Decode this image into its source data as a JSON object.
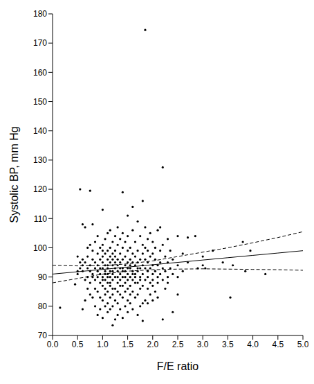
{
  "chart_data": {
    "type": "scatter",
    "x_label": "F/E ratio",
    "y_label": "Systolic BP, mm Hg",
    "grid": false,
    "xlim": [
      0,
      5
    ],
    "xticks": [
      {
        "value": 0,
        "label": "0.0"
      },
      {
        "value": 0.5,
        "label": "0.5"
      },
      {
        "value": 1,
        "label": "1.0"
      },
      {
        "value": 1.5,
        "label": "1.5"
      },
      {
        "value": 2,
        "label": "2.0"
      },
      {
        "value": 2.5,
        "label": "2.5"
      },
      {
        "value": 3,
        "label": "3.0"
      },
      {
        "value": 3.5,
        "label": "3.5"
      },
      {
        "value": 4,
        "label": "4.0"
      },
      {
        "value": 4.5,
        "label": "4.5"
      },
      {
        "value": 5,
        "label": "5.0"
      }
    ],
    "ylim": [
      70,
      180
    ],
    "yticks": [
      70,
      80,
      90,
      100,
      110,
      120,
      130,
      140,
      150,
      160,
      170,
      180
    ],
    "series": [
      {
        "type": "scatter",
        "marker": "circle",
        "color": "#000000",
        "x": [
          0.15,
          0.45,
          0.5,
          0.5,
          0.5,
          0.55,
          0.55,
          0.55,
          0.6,
          0.6,
          0.6,
          0.6,
          0.6,
          0.65,
          0.65,
          0.65,
          0.65,
          0.7,
          0.7,
          0.7,
          0.7,
          0.7,
          0.75,
          0.75,
          0.75,
          0.75,
          0.75,
          0.75,
          0.8,
          0.8,
          0.8,
          0.8,
          0.8,
          0.8,
          0.85,
          0.85,
          0.85,
          0.85,
          0.85,
          0.85,
          0.9,
          0.9,
          0.9,
          0.9,
          0.9,
          0.9,
          0.9,
          0.95,
          0.95,
          0.95,
          0.95,
          0.95,
          0.95,
          0.95,
          1.0,
          1.0,
          1.0,
          1.0,
          1.0,
          1.0,
          1.0,
          1.0,
          1.0,
          1.0,
          1.0,
          1.05,
          1.05,
          1.05,
          1.05,
          1.05,
          1.05,
          1.05,
          1.05,
          1.05,
          1.1,
          1.1,
          1.1,
          1.1,
          1.1,
          1.1,
          1.1,
          1.1,
          1.1,
          1.1,
          1.1,
          1.15,
          1.15,
          1.15,
          1.15,
          1.15,
          1.15,
          1.15,
          1.15,
          1.15,
          1.15,
          1.2,
          1.2,
          1.2,
          1.2,
          1.2,
          1.2,
          1.2,
          1.2,
          1.2,
          1.2,
          1.2,
          1.25,
          1.25,
          1.25,
          1.25,
          1.25,
          1.25,
          1.25,
          1.25,
          1.25,
          1.3,
          1.3,
          1.3,
          1.3,
          1.3,
          1.3,
          1.3,
          1.3,
          1.3,
          1.3,
          1.35,
          1.35,
          1.35,
          1.35,
          1.35,
          1.35,
          1.35,
          1.35,
          1.35,
          1.4,
          1.4,
          1.4,
          1.4,
          1.4,
          1.4,
          1.4,
          1.4,
          1.4,
          1.4,
          1.45,
          1.45,
          1.45,
          1.45,
          1.45,
          1.45,
          1.45,
          1.45,
          1.5,
          1.5,
          1.5,
          1.5,
          1.5,
          1.5,
          1.5,
          1.5,
          1.5,
          1.5,
          1.55,
          1.55,
          1.55,
          1.55,
          1.55,
          1.55,
          1.55,
          1.55,
          1.6,
          1.6,
          1.6,
          1.6,
          1.6,
          1.6,
          1.6,
          1.6,
          1.6,
          1.65,
          1.65,
          1.65,
          1.65,
          1.65,
          1.65,
          1.65,
          1.7,
          1.7,
          1.7,
          1.7,
          1.7,
          1.7,
          1.7,
          1.7,
          1.75,
          1.75,
          1.75,
          1.75,
          1.75,
          1.75,
          1.75,
          1.8,
          1.8,
          1.8,
          1.8,
          1.8,
          1.8,
          1.8,
          1.8,
          1.85,
          1.85,
          1.85,
          1.85,
          1.85,
          1.85,
          1.85,
          1.9,
          1.9,
          1.9,
          1.9,
          1.9,
          1.9,
          1.9,
          1.95,
          1.95,
          1.95,
          1.95,
          1.95,
          2.0,
          2.0,
          2.0,
          2.0,
          2.0,
          2.0,
          2.0,
          2.05,
          2.05,
          2.05,
          2.05,
          2.1,
          2.1,
          2.1,
          2.1,
          2.1,
          2.15,
          2.15,
          2.15,
          2.15,
          2.2,
          2.2,
          2.2,
          2.2,
          2.2,
          2.25,
          2.25,
          2.25,
          2.3,
          2.3,
          2.3,
          2.3,
          2.35,
          2.35,
          2.4,
          2.4,
          2.4,
          2.5,
          2.5,
          2.5,
          2.5,
          2.6,
          2.6,
          2.7,
          2.7,
          2.85,
          2.9,
          3.0,
          3.0,
          3.05,
          3.2,
          3.4,
          3.55,
          3.6,
          3.8,
          3.85,
          3.95,
          4.25
        ],
        "values": [
          79.5,
          87.5,
          91,
          92,
          97,
          120,
          93,
          95,
          79,
          92,
          94,
          108,
          96,
          82,
          89,
          95,
          107,
          90,
          93,
          86,
          100,
          97,
          119.5,
          88,
          92,
          94,
          101,
          84,
          83,
          91,
          96,
          108,
          90,
          99,
          80,
          86,
          93,
          95,
          102,
          89,
          77,
          85,
          90,
          92,
          98,
          104,
          94,
          79,
          88,
          91,
          96,
          100,
          83,
          93,
          76,
          82,
          87,
          90,
          93,
          95,
          97,
          101,
          113,
          89,
          99,
          80,
          84,
          89,
          92,
          94,
          98,
          103,
          86,
          91,
          78,
          81,
          85,
          88,
          91,
          93,
          96,
          99,
          105,
          90,
          94,
          79,
          83,
          87,
          90,
          92,
          95,
          97,
          100,
          106,
          88,
          73.5,
          80,
          84,
          89,
          92,
          94,
          96,
          98,
          102,
          91,
          86,
          75.5,
          82,
          86,
          90,
          93,
          95,
          99,
          104,
          97,
          77,
          81,
          85,
          88,
          92,
          94,
          96,
          101,
          107,
          90,
          79,
          84,
          89,
          91,
          95,
          98,
          103,
          87,
          93,
          76,
          83,
          87,
          90,
          93,
          96,
          100,
          119,
          105,
          92,
          80,
          85,
          88,
          92,
          94,
          97,
          102,
          90,
          78,
          82,
          86,
          91,
          93,
          95,
          99,
          104,
          111,
          89,
          81,
          87,
          90,
          93,
          96,
          100,
          84,
          94,
          79,
          85,
          89,
          92,
          95,
          98,
          114,
          106,
          91,
          83,
          88,
          91,
          94,
          97,
          102,
          90,
          77,
          84,
          88,
          92,
          95,
          99,
          109,
          93,
          80,
          86,
          90,
          93,
          96,
          104,
          89,
          75,
          81,
          87,
          91,
          94,
          98,
          116,
          101,
          174.5,
          82,
          89,
          93,
          96,
          107,
          100,
          81,
          86,
          92,
          95,
          99,
          103,
          90,
          84,
          88,
          93,
          97,
          105,
          82,
          87,
          91,
          94,
          98,
          102,
          89,
          85,
          92,
          96,
          100,
          83,
          90,
          94,
          106,
          88,
          91,
          95,
          107,
          99,
          75.5,
          127.5,
          89,
          93,
          101,
          86,
          92,
          97,
          90,
          95,
          103,
          88,
          93,
          99,
          78,
          91,
          96,
          84,
          94,
          104,
          90,
          92,
          98,
          103.5,
          95,
          104,
          93,
          97,
          94,
          93,
          99,
          95,
          83,
          94,
          102,
          92,
          99,
          91
        ]
      },
      {
        "type": "line",
        "line_style": "solid",
        "color": "#000000",
        "x": [
          0,
          0.5,
          1,
          1.5,
          2,
          2.5,
          3,
          3.5,
          4,
          4.5,
          5
        ],
        "values": [
          91,
          91.8,
          92.6,
          93.4,
          94.2,
          95,
          95.8,
          96.6,
          97.4,
          98.2,
          99
        ]
      },
      {
        "type": "line",
        "line_style": "dashed",
        "color": "#000000",
        "x": [
          0,
          0.5,
          1,
          1.5,
          2,
          2.5,
          3,
          3.5,
          4,
          4.5,
          5
        ],
        "values": [
          94,
          93.8,
          93.9,
          94.5,
          95.5,
          97,
          98.5,
          100,
          101.7,
          103.5,
          105.5
        ]
      },
      {
        "type": "line",
        "line_style": "dashed",
        "color": "#000000",
        "x": [
          0,
          0.5,
          1,
          1.5,
          2,
          2.5,
          3,
          3.5,
          4,
          4.5,
          5
        ],
        "values": [
          88,
          89.5,
          91,
          92,
          92.5,
          92.7,
          92.8,
          92.7,
          92.6,
          92.5,
          92.3
        ]
      }
    ]
  }
}
